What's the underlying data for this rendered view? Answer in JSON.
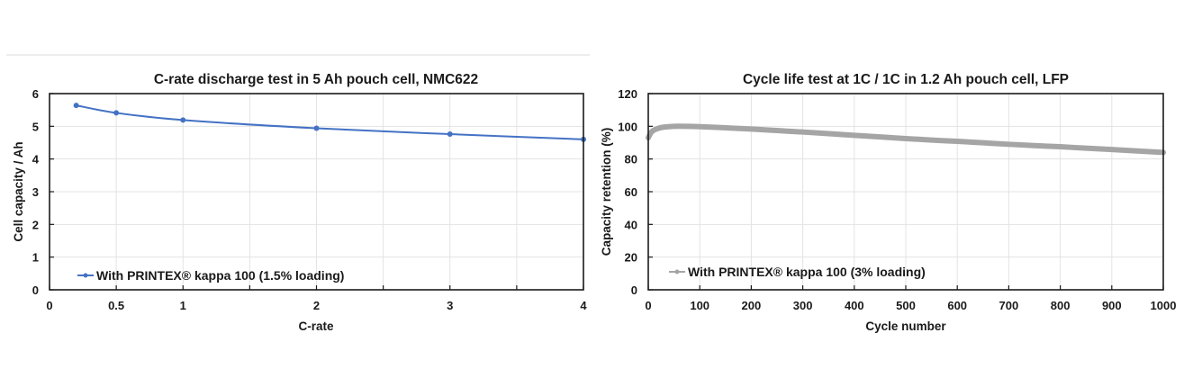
{
  "chart_data": [
    {
      "type": "line",
      "title": "C-rate discharge test in 5 Ah pouch cell, NMC622",
      "xlabel": "C-rate",
      "ylabel": "Cell capacity / Ah",
      "xlim": [
        0,
        4
      ],
      "ylim": [
        0,
        6
      ],
      "x_ticks": [
        0,
        0.5,
        1,
        1.5,
        2,
        2.5,
        3,
        3.5,
        4
      ],
      "x_tick_labels": [
        "0",
        "0.5",
        "1",
        "",
        "2",
        "",
        "3",
        "",
        "4"
      ],
      "y_ticks": [
        0,
        1,
        2,
        3,
        4,
        5,
        6
      ],
      "y_tick_labels": [
        "0",
        "1",
        "2",
        "3",
        "4",
        "5",
        "6"
      ],
      "grid": true,
      "legend_position": "bottom-left",
      "series": [
        {
          "name": "With PRINTEX® kappa 100 (1.5% loading)",
          "color": "#4472c4",
          "x": [
            0.2,
            0.5,
            1,
            2,
            3,
            4
          ],
          "y": [
            5.64,
            5.41,
            5.19,
            4.94,
            4.76,
            4.6
          ]
        }
      ]
    },
    {
      "type": "line",
      "title": "Cycle life test at 1C / 1C in 1.2 Ah pouch cell, LFP",
      "xlabel": "Cycle number",
      "ylabel": "Capacity retention (%)",
      "xlim": [
        0,
        1000
      ],
      "ylim": [
        0,
        120
      ],
      "x_ticks": [
        0,
        100,
        200,
        300,
        400,
        500,
        600,
        700,
        800,
        900,
        1000
      ],
      "x_tick_labels": [
        "0",
        "100",
        "200",
        "300",
        "400",
        "500",
        "600",
        "700",
        "800",
        "900",
        "1000"
      ],
      "y_ticks": [
        0,
        20,
        40,
        60,
        80,
        100,
        120
      ],
      "y_tick_labels": [
        "0",
        "20",
        "40",
        "60",
        "80",
        "100",
        "120"
      ],
      "grid": true,
      "legend_position": "bottom-left",
      "series": [
        {
          "name": "With PRINTEX® kappa 100 (3% loading)",
          "color": "#a5a5a5",
          "x": [
            0,
            5,
            10,
            20,
            30,
            50,
            75,
            100,
            150,
            200,
            250,
            300,
            350,
            400,
            450,
            500,
            550,
            600,
            650,
            700,
            750,
            800,
            850,
            900,
            950,
            1000
          ],
          "y": [
            93,
            96,
            97.5,
            98.8,
            99.5,
            100,
            100,
            99.8,
            99.1,
            98.3,
            97.4,
            96.5,
            95.5,
            94.5,
            93.5,
            92.5,
            91.6,
            90.8,
            89.9,
            89,
            88.2,
            87.5,
            86.6,
            85.8,
            84.9,
            84
          ]
        }
      ]
    }
  ]
}
